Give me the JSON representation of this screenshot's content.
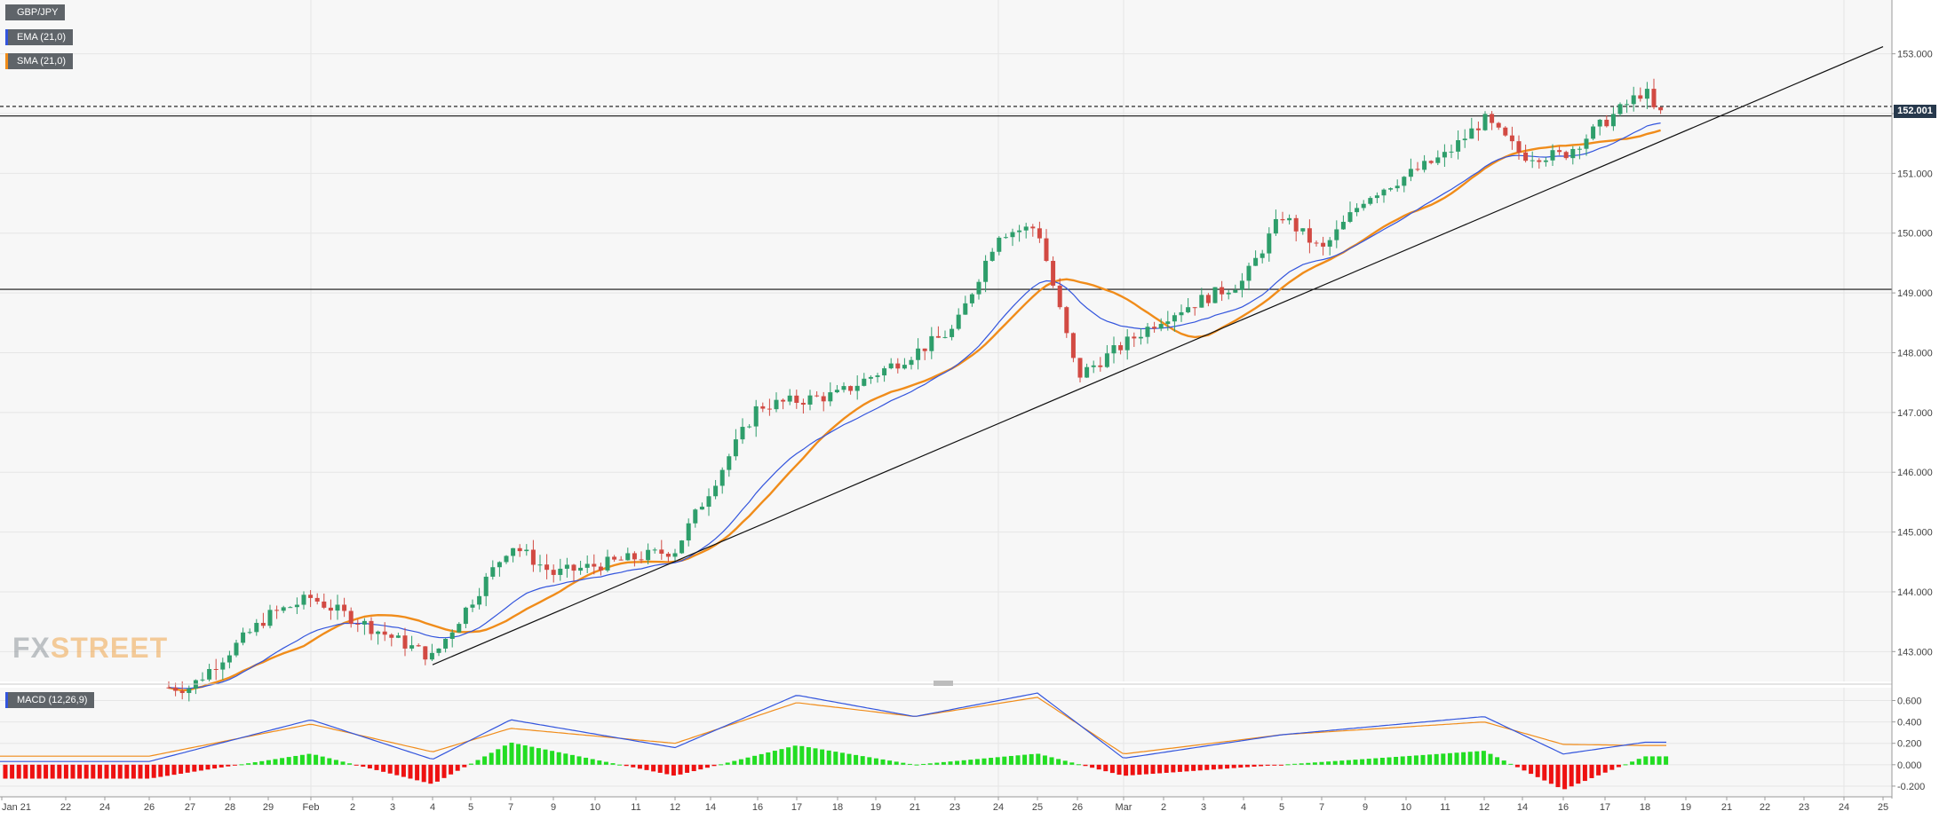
{
  "symbol_label": "GBP/JPY",
  "indicator_labels": {
    "ema": "EMA (21,0)",
    "sma": "SMA (21,0)",
    "macd": "MACD (12,26,9)"
  },
  "watermark": {
    "part1": "FX",
    "part2": "STREET"
  },
  "last_price_label": "152.001",
  "colors": {
    "background": "#f7f7f7",
    "grid": "#e6e6e6",
    "bull": "#2e9e6b",
    "bear": "#d24a43",
    "ema": "#3355dd",
    "sma": "#f08c1a",
    "macd_line": "#3355dd",
    "signal_line": "#f08c1a",
    "hist_pos": "#22dd22",
    "hist_neg": "#ee1111",
    "last_price_bg": "#26384c"
  },
  "chart_data": [
    {
      "type": "candlestick",
      "title": "GBP/JPY",
      "ylim": [
        142.5,
        153.9
      ],
      "y_ticks": [
        "143.000",
        "144.000",
        "145.000",
        "146.000",
        "147.000",
        "148.000",
        "149.000",
        "150.000",
        "151.000",
        "152.000",
        "153.000"
      ],
      "x_ticks": [
        "Jan 21",
        "22",
        "24",
        "26",
        "27",
        "28",
        "29",
        "Feb",
        "2",
        "3",
        "4",
        "5",
        "7",
        "9",
        "10",
        "11",
        "12",
        "14",
        "16",
        "17",
        "18",
        "19",
        "21",
        "23",
        "24",
        "25",
        "26",
        "Mar",
        "2",
        "3",
        "4",
        "5",
        "7",
        "9",
        "10",
        "11",
        "12",
        "14",
        "16",
        "17",
        "18",
        "19",
        "21",
        "22",
        "23",
        "24",
        "25"
      ],
      "horizontal_levels": [
        {
          "value": 152.12,
          "style": "dashed"
        },
        {
          "value": 151.96,
          "style": "solid"
        },
        {
          "value": 149.06,
          "style": "solid"
        }
      ],
      "trendline": {
        "from": {
          "date": "Feb 4",
          "price": 142.78
        },
        "to": {
          "date": "Mar 25",
          "price": 153.12
        }
      },
      "series": [
        {
          "name": "EMA (21,0)"
        },
        {
          "name": "SMA (21,0)"
        }
      ],
      "description_points": [
        {
          "date": "Jan 27",
          "close": 142.4
        },
        {
          "date": "Jan 29",
          "close": 143.6
        },
        {
          "date": "Feb 1",
          "close": 143.9
        },
        {
          "date": "Feb 4",
          "close": 142.9
        },
        {
          "date": "Feb 7",
          "close": 144.8
        },
        {
          "date": "Feb 9",
          "close": 144.3
        },
        {
          "date": "Feb 12",
          "close": 144.7
        },
        {
          "date": "Feb 16",
          "close": 147.1
        },
        {
          "date": "Feb 18",
          "close": 147.3
        },
        {
          "date": "Feb 21",
          "close": 148.0
        },
        {
          "date": "Feb 23",
          "close": 148.4
        },
        {
          "date": "Feb 24",
          "close": 150.0
        },
        {
          "date": "Feb 25",
          "close": 150.1
        },
        {
          "date": "Feb 26",
          "close": 147.6
        },
        {
          "date": "Mar 2",
          "close": 148.6
        },
        {
          "date": "Mar 4",
          "close": 149.2
        },
        {
          "date": "Mar 5",
          "close": 150.3
        },
        {
          "date": "Mar 7",
          "close": 149.7
        },
        {
          "date": "Mar 9",
          "close": 150.6
        },
        {
          "date": "Mar 11",
          "close": 151.3
        },
        {
          "date": "Mar 12",
          "close": 151.9
        },
        {
          "date": "Mar 14",
          "close": 151.3
        },
        {
          "date": "Mar 16",
          "close": 151.3
        },
        {
          "date": "Mar 18",
          "close": 152.4
        },
        {
          "date": "Mar 18",
          "close": 152.0
        }
      ]
    },
    {
      "type": "macd",
      "title": "MACD (12,26,9)",
      "ylim": [
        -0.3,
        0.72
      ],
      "y_ticks": [
        "-0.200",
        "0.000",
        "0.200",
        "0.400",
        "0.600"
      ],
      "series": [
        {
          "name": "MACD"
        },
        {
          "name": "Signal"
        },
        {
          "name": "Histogram"
        }
      ],
      "description_points": [
        {
          "date": "Jan 26",
          "macd": 0.03,
          "signal": 0.08
        },
        {
          "date": "Feb 1",
          "macd": 0.42,
          "signal": 0.38
        },
        {
          "date": "Feb 4",
          "macd": 0.05,
          "signal": 0.12
        },
        {
          "date": "Feb 7",
          "macd": 0.42,
          "signal": 0.34
        },
        {
          "date": "Feb 12",
          "macd": 0.16,
          "signal": 0.2
        },
        {
          "date": "Feb 17",
          "macd": 0.65,
          "signal": 0.58
        },
        {
          "date": "Feb 21",
          "macd": 0.45,
          "signal": 0.45
        },
        {
          "date": "Feb 25",
          "macd": 0.67,
          "signal": 0.63
        },
        {
          "date": "Mar 1",
          "macd": 0.06,
          "signal": 0.1
        },
        {
          "date": "Mar 5",
          "macd": 0.28,
          "signal": 0.28
        },
        {
          "date": "Mar 12",
          "macd": 0.45,
          "signal": 0.4
        },
        {
          "date": "Mar 16",
          "macd": 0.1,
          "signal": 0.19
        },
        {
          "date": "Mar 18",
          "macd": 0.21,
          "signal": 0.18
        }
      ]
    }
  ]
}
